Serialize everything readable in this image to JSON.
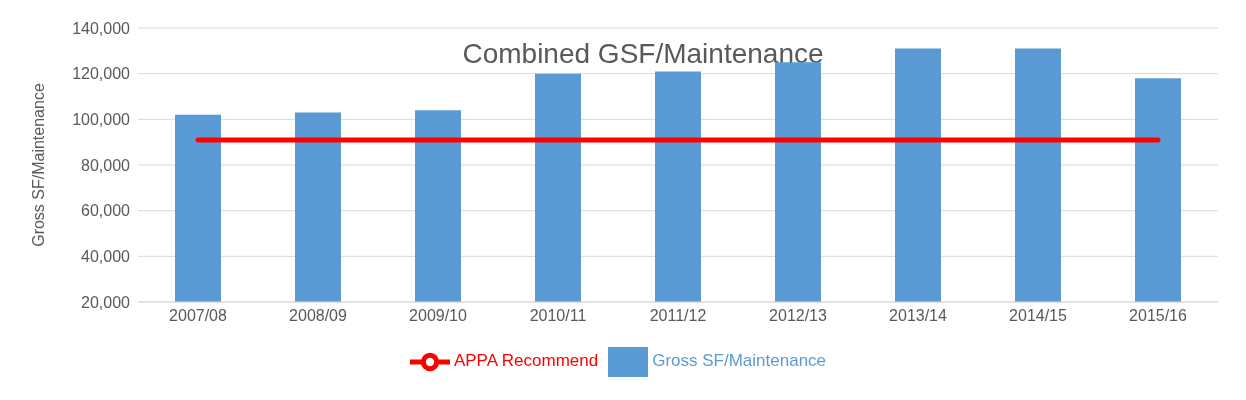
{
  "chart_data": {
    "type": "bar",
    "title": "Combined GSF/Maintenance",
    "ylabel": "Gross SF/Maintenance",
    "categories": [
      "2007/08",
      "2008/09",
      "2009/10",
      "2010/11",
      "2011/12",
      "2012/13",
      "2013/14",
      "2014/15",
      "2015/16"
    ],
    "series": [
      {
        "name": "Gross SF/Maintenance",
        "color": "#5b9bd5",
        "values": [
          102000,
          103000,
          104000,
          120000,
          121000,
          125000,
          131000,
          131000,
          118000
        ]
      },
      {
        "name": "APPA Recommend",
        "type": "line",
        "color": "#ff0000",
        "values": [
          91000,
          91000,
          91000,
          91000,
          91000,
          91000,
          91000,
          91000,
          91000
        ]
      }
    ],
    "ylim": [
      20000,
      140000
    ],
    "yticks": [
      {
        "value": 20000,
        "label": "20,000"
      },
      {
        "value": 40000,
        "label": "40,000"
      },
      {
        "value": 60000,
        "label": "60,000"
      },
      {
        "value": 80000,
        "label": "80,000"
      },
      {
        "value": 100000,
        "label": "100,000"
      },
      {
        "value": 120000,
        "label": "120,000"
      },
      {
        "value": 140000,
        "label": "140,000"
      }
    ],
    "grid": "y",
    "legend": "bottom",
    "marker": "none"
  }
}
